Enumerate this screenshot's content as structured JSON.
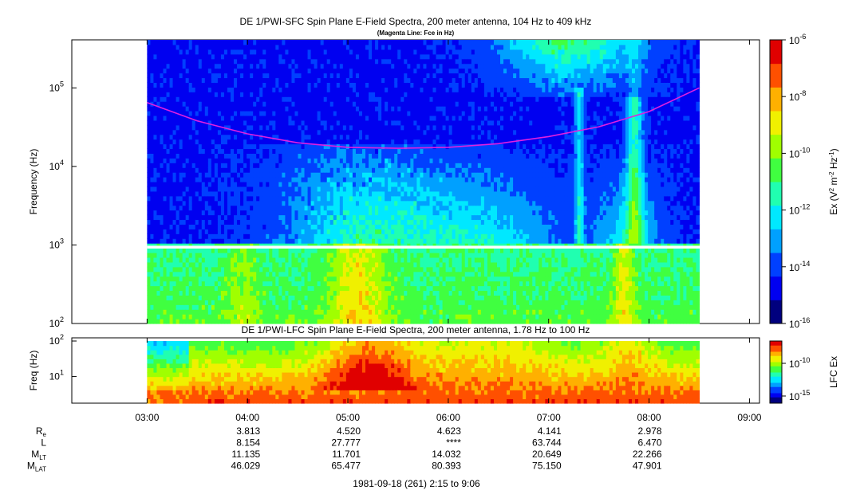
{
  "colors": {
    "scale": [
      "#00007e",
      "#0000f0",
      "#0040ff",
      "#00a0ff",
      "#00e8ff",
      "#20ffb0",
      "#40ff40",
      "#a0ff00",
      "#f0f000",
      "#ffb000",
      "#ff5000",
      "#e00000"
    ],
    "magenta": "#e020e0",
    "gap": "#ffffff"
  },
  "chart_data": [
    {
      "type": "heatmap",
      "title": "DE 1/PWI-SFC  Spin Plane E-Field Spectra, 200 meter antenna, 104 Hz to 409 kHz",
      "subtitle": "(Magenta Line: Fce in Hz)",
      "ylabel": "Frequency (Hz)",
      "yscale": "log",
      "ylim": [
        100,
        409000
      ],
      "xlim": [
        "02:15",
        "09:06"
      ],
      "data_xrange": [
        "03:00",
        "08:30"
      ],
      "yticks": [
        {
          "exp": "2"
        },
        {
          "exp": "3"
        },
        {
          "exp": "4"
        },
        {
          "exp": "5"
        }
      ],
      "colorbar": {
        "label_base": "Ex (V",
        "label_sup1": "2",
        "label_mid": " m",
        "label_sup2": "-2",
        "label_mid2": " Hz",
        "label_sup3": "-1",
        "label_end": ")",
        "scale": "log",
        "range": [
          1e-16,
          1e-06
        ],
        "ticks": [
          {
            "exp": "-6"
          },
          {
            "exp": "-8"
          },
          {
            "exp": "-10"
          },
          {
            "exp": "-12"
          },
          {
            "exp": "-14"
          },
          {
            "exp": "-16"
          }
        ]
      },
      "fce_line": {
        "times": [
          "03:00",
          "03:30",
          "04:00",
          "04:30",
          "05:00",
          "05:30",
          "06:00",
          "06:30",
          "07:00",
          "07:30",
          "08:00",
          "08:30"
        ],
        "values": [
          65000,
          38000,
          26000,
          20000,
          17500,
          17000,
          17500,
          19500,
          24000,
          32000,
          50000,
          100000
        ]
      }
    },
    {
      "type": "heatmap",
      "title": "DE 1/PWI-LFC  Spin Plane E-Field Spectra, 200 meter antenna, 1.78 Hz to 100 Hz",
      "ylabel": "Freq (Hz)",
      "yscale": "log",
      "ylim": [
        1.78,
        100
      ],
      "xlim": [
        "02:15",
        "09:06"
      ],
      "data_xrange": [
        "03:00",
        "08:30"
      ],
      "yticks": [
        {
          "exp": "2"
        },
        {
          "exp": "1"
        }
      ],
      "colorbar": {
        "label": "LFC Ex",
        "scale": "log",
        "ticks": [
          {
            "exp": "-10"
          },
          {
            "exp": "-15"
          }
        ]
      }
    }
  ],
  "xaxis": {
    "ticks": [
      "03:00",
      "04:00",
      "05:00",
      "06:00",
      "07:00",
      "08:00",
      "09:00"
    ],
    "title": "1981-09-18 (261) 2:15 to 9:06"
  },
  "ephemeris": {
    "rows": [
      {
        "name": "R",
        "sub": "e",
        "values": [
          "3.813",
          "4.520",
          "4.623",
          "4.141",
          "2.978"
        ]
      },
      {
        "name": "L",
        "sub": "",
        "values": [
          "8.154",
          "27.777",
          "****",
          "63.744",
          "6.470"
        ]
      },
      {
        "name": "M",
        "sub": "LT",
        "values": [
          "11.135",
          "11.701",
          "14.032",
          "20.649",
          "22.266"
        ]
      },
      {
        "name": "M",
        "sub": "LAT",
        "values": [
          "46.029",
          "65.477",
          "80.393",
          "75.150",
          "47.901"
        ]
      }
    ]
  }
}
